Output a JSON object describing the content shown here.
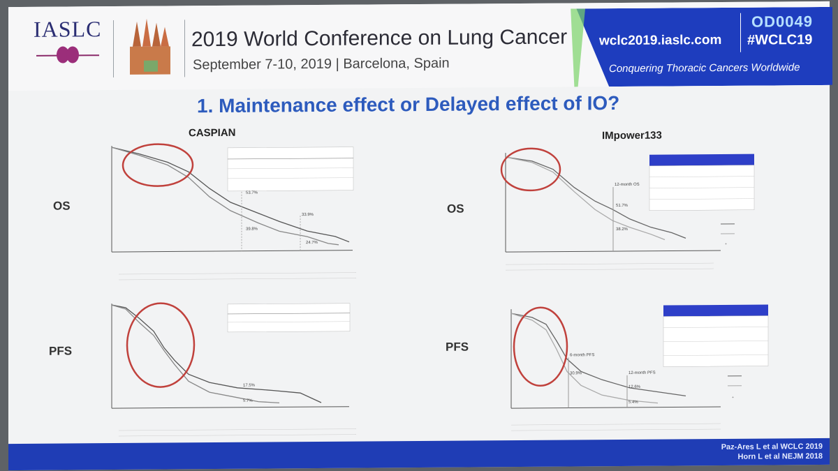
{
  "header": {
    "org": "IASLC",
    "conference_title": "2019 World Conference on Lung Cancer",
    "conference_date": "September 7-10, 2019 | Barcelona, Spain",
    "website": "wclc2019.iaslc.com",
    "code": "OD0049",
    "hashtag": "#WCLC19",
    "slogan": "Conquering Thoracic Cancers Worldwide",
    "accent_color": "#1e3dbe"
  },
  "slide": {
    "title": "1. Maintenance effect or Delayed effect of IO?",
    "trial_left": "CASPIAN",
    "trial_right": "IMpower133",
    "row_os": "OS",
    "row_pfs": "PFS",
    "caspian_os_labels": [
      "53.7%",
      "33.9%",
      "39.8%",
      "24.7%"
    ],
    "caspian_pfs_labels": [
      "17.5%",
      "5.7%"
    ],
    "imp_os_labels": [
      "12-month OS",
      "51.7%",
      "38.2%"
    ],
    "imp_pfs_labels": [
      "6-month PFS",
      "30.9%",
      "12-month PFS",
      "12.6%",
      "5.4%"
    ]
  },
  "footer": {
    "citation_1": "Paz-Ares L et al WCLC 2019",
    "citation_2": "Horn L et al NEJM 2018"
  }
}
